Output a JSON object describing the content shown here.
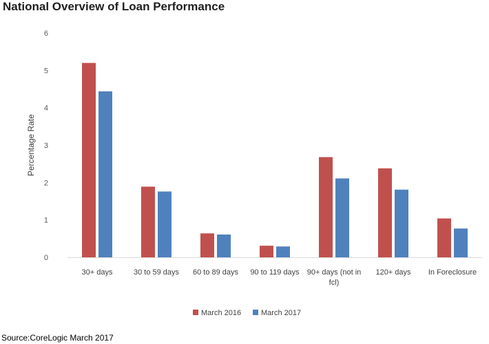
{
  "title": "National Overview of Loan Performance",
  "source": "Source:CoreLogic March 2017",
  "chart_data": {
    "type": "bar",
    "title": "National Overview of Loan Performance",
    "xlabel": "",
    "ylabel": "Percentage Rate",
    "ylim": [
      0,
      6
    ],
    "yticks": [
      0,
      1,
      2,
      3,
      4,
      5,
      6
    ],
    "grid": false,
    "legend_position": "bottom",
    "categories": [
      [
        "30+ days"
      ],
      [
        "30 to 59 days"
      ],
      [
        "60 to 89 days"
      ],
      [
        "90 to 119 days"
      ],
      [
        "90+ days (not in",
        "fcl)"
      ],
      [
        "120+ days"
      ],
      [
        "In Foreclosure"
      ]
    ],
    "series": [
      {
        "name": "March 2016",
        "color": "#c0504d",
        "values": [
          5.2,
          1.89,
          0.64,
          0.31,
          2.68,
          2.38,
          1.04
        ]
      },
      {
        "name": "March 2017",
        "color": "#4f81bd",
        "values": [
          4.44,
          1.76,
          0.61,
          0.29,
          2.11,
          1.81,
          0.77
        ]
      }
    ]
  }
}
